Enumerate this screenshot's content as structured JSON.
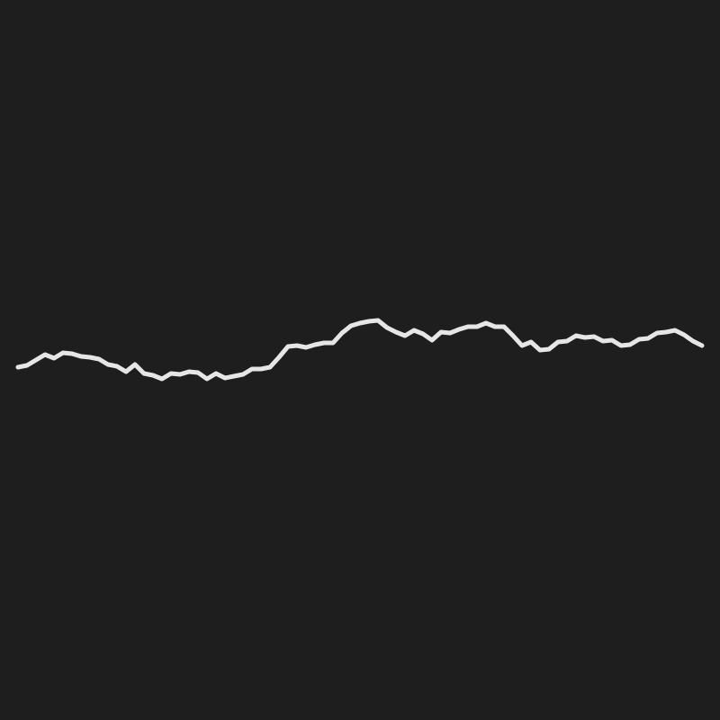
{
  "chart_data": {
    "type": "line",
    "title": "",
    "xlabel": "",
    "ylabel": "",
    "grid": false,
    "axes_visible": false,
    "background_color": "#1e1e1e",
    "line_color": "#e6e6e6",
    "series": [
      {
        "values": [
          -8,
          -6,
          0,
          6,
          2,
          8,
          7,
          4,
          3,
          1,
          -5,
          -7,
          -13,
          -5,
          -15,
          -17,
          -21,
          -15,
          -16,
          -13,
          -14,
          -21,
          -15,
          -20,
          -18,
          -16,
          -10,
          -10,
          -8,
          3,
          15,
          16,
          14,
          17,
          19,
          19,
          30,
          38,
          41,
          43,
          44,
          36,
          31,
          27,
          33,
          29,
          22,
          31,
          30,
          34,
          37,
          37,
          41,
          37,
          37,
          27,
          16,
          20,
          11,
          12,
          20,
          21,
          27,
          25,
          26,
          21,
          22,
          16,
          17,
          23,
          24,
          30,
          31,
          33,
          28,
          21,
          16
        ]
      }
    ]
  }
}
